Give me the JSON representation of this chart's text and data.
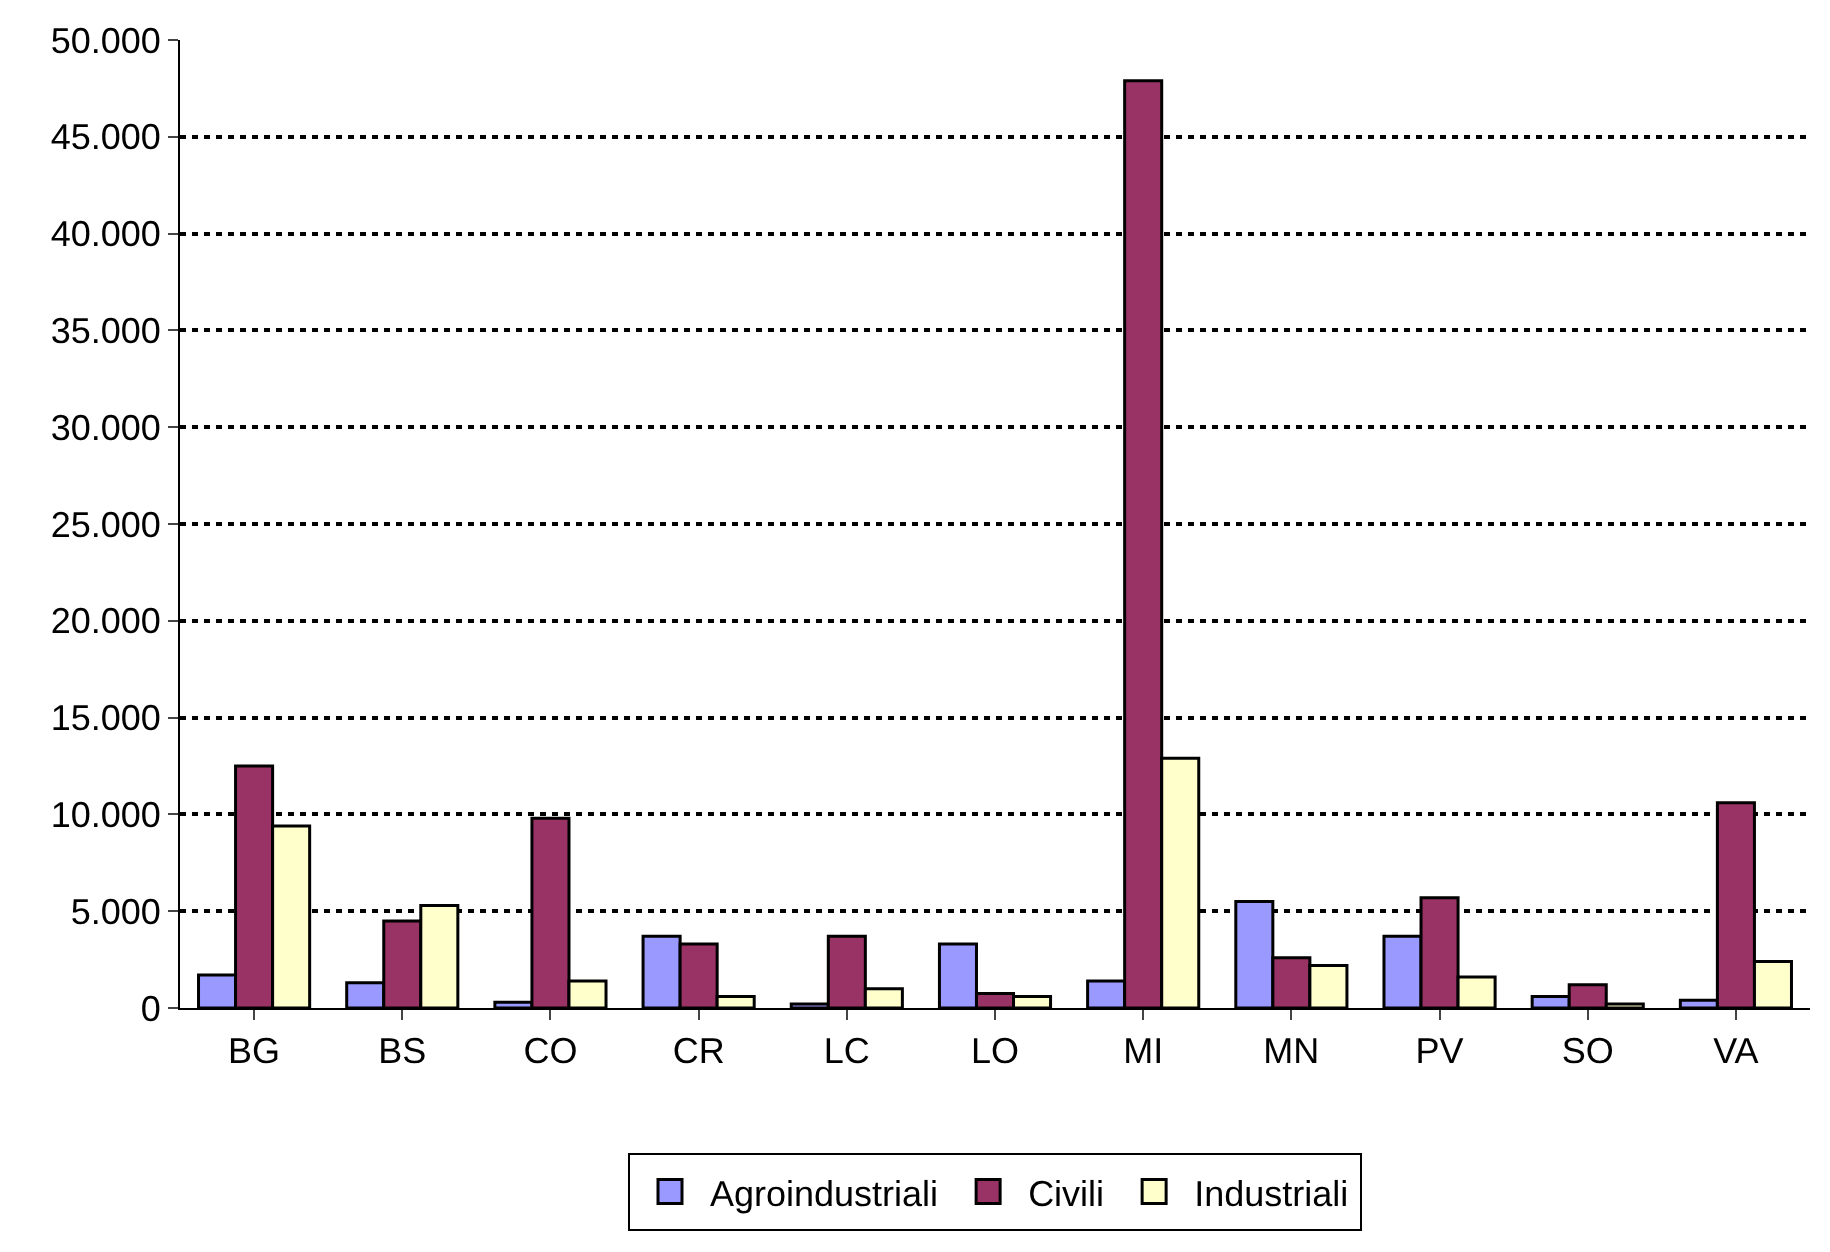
{
  "chart_data": {
    "type": "bar",
    "categories": [
      "BG",
      "BS",
      "CO",
      "CR",
      "LC",
      "LO",
      "MI",
      "MN",
      "PV",
      "SO",
      "VA"
    ],
    "series": [
      {
        "name": "Agroindustriali",
        "color": "#9999ff",
        "values": [
          1700,
          1300,
          300,
          3700,
          200,
          3300,
          1400,
          5500,
          3700,
          600,
          400
        ]
      },
      {
        "name": "Civili",
        "color": "#993366",
        "values": [
          12500,
          4500,
          9800,
          3300,
          3700,
          750,
          47900,
          2600,
          5700,
          1200,
          10600
        ]
      },
      {
        "name": "Industriali",
        "color": "#ffffcc",
        "values": [
          9400,
          5300,
          1400,
          600,
          1000,
          600,
          12900,
          2200,
          1600,
          200,
          2400
        ]
      }
    ],
    "ylim": [
      0,
      50000
    ],
    "yticks": [
      {
        "value": 0,
        "label": "0"
      },
      {
        "value": 5000,
        "label": "5.000"
      },
      {
        "value": 10000,
        "label": "10.000"
      },
      {
        "value": 15000,
        "label": "15.000"
      },
      {
        "value": 20000,
        "label": "20.000"
      },
      {
        "value": 25000,
        "label": "25.000"
      },
      {
        "value": 30000,
        "label": "30.000"
      },
      {
        "value": 35000,
        "label": "35.000"
      },
      {
        "value": 40000,
        "label": "40.000"
      },
      {
        "value": 45000,
        "label": "45.000"
      },
      {
        "value": 50000,
        "label": "50.000"
      }
    ],
    "grid": "y",
    "legend": "bottom"
  }
}
